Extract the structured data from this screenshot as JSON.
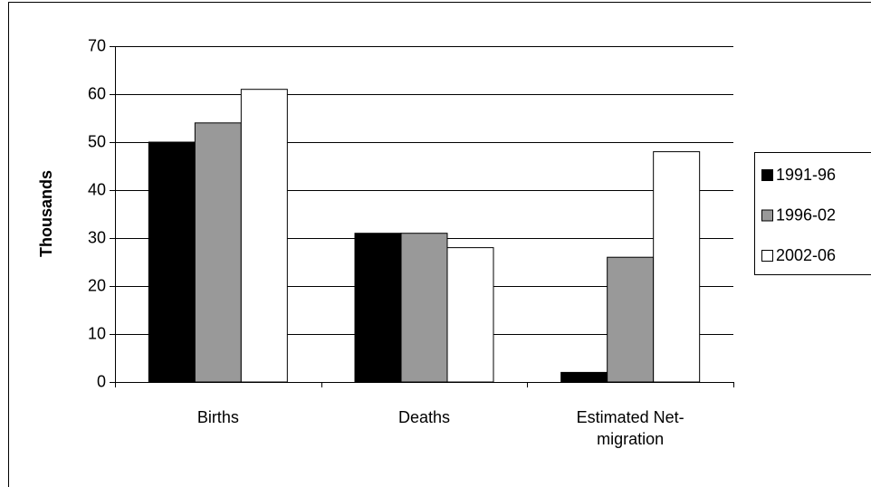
{
  "chart_data": {
    "type": "bar",
    "ylabel": "Thousands",
    "categories": [
      "Births",
      "Deaths",
      "Estimated Net-migration"
    ],
    "series": [
      {
        "name": "1991-96",
        "color": "#000000",
        "values": [
          50,
          31,
          2
        ]
      },
      {
        "name": "1996-02",
        "color": "#999999",
        "values": [
          54,
          31,
          26
        ]
      },
      {
        "name": "2002-06",
        "color": "#ffffff",
        "values": [
          61,
          28,
          48
        ]
      }
    ],
    "ylim": [
      0,
      70
    ],
    "yticks": [
      0,
      10,
      20,
      30,
      40,
      50,
      60,
      70
    ],
    "grid": true,
    "legend": "right"
  }
}
